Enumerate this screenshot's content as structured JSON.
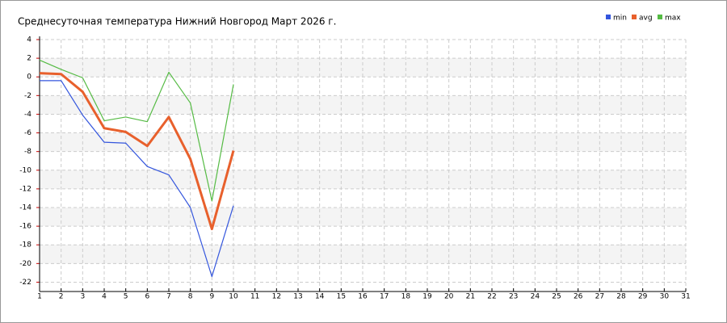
{
  "chart_data": {
    "type": "line",
    "title": "Среднесуточная температура Нижний Новгород  Март 2026 г.",
    "x": [
      1,
      2,
      3,
      4,
      5,
      6,
      7,
      8,
      9,
      10
    ],
    "series": [
      {
        "name": "min",
        "color": "#3355dd",
        "values": [
          -0.4,
          -0.4,
          -4.1,
          -7.0,
          -7.1,
          -9.6,
          -10.5,
          -14.0,
          -21.4,
          -13.8
        ]
      },
      {
        "name": "avg",
        "color": "#e8602c",
        "values": [
          0.4,
          0.3,
          -1.6,
          -5.5,
          -5.9,
          -7.4,
          -4.3,
          -8.8,
          -16.3,
          -7.9
        ]
      },
      {
        "name": "max",
        "color": "#55bb44",
        "values": [
          1.8,
          0.8,
          -0.1,
          -4.7,
          -4.3,
          -4.8,
          0.5,
          -2.8,
          -13.3,
          -0.8
        ]
      }
    ],
    "xlim": [
      1,
      31
    ],
    "xticks": [
      1,
      2,
      3,
      4,
      5,
      6,
      7,
      8,
      9,
      10,
      11,
      12,
      13,
      14,
      15,
      16,
      17,
      18,
      19,
      20,
      21,
      22,
      23,
      24,
      25,
      26,
      27,
      28,
      29,
      30,
      31
    ],
    "ylim": [
      -23,
      4
    ],
    "yticks": [
      -22,
      -20,
      -18,
      -16,
      -14,
      -12,
      -10,
      -8,
      -6,
      -4,
      -2,
      0,
      2,
      4
    ],
    "grid": true,
    "legend": "top-right"
  }
}
